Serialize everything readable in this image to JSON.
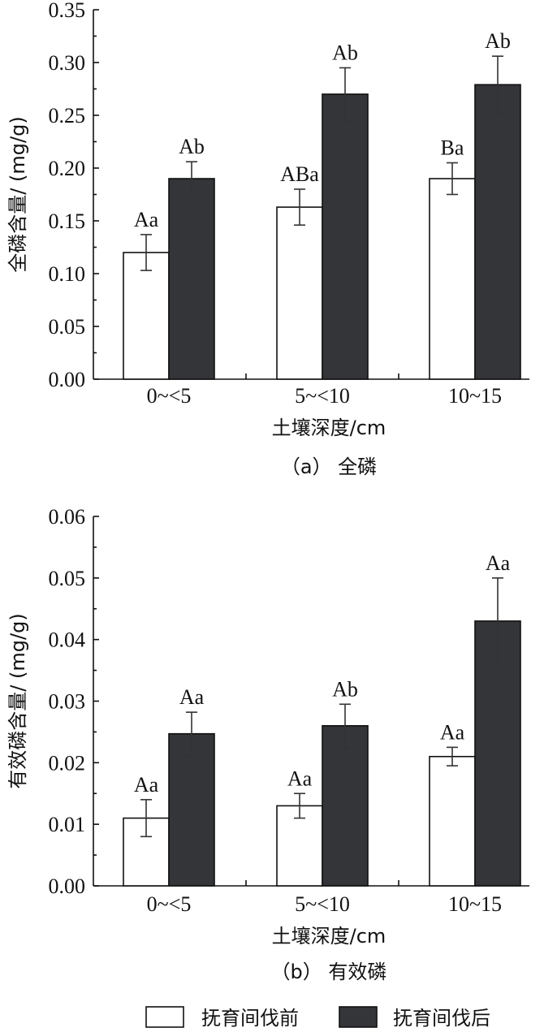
{
  "chart_data": [
    {
      "type": "bar",
      "panel": "a",
      "caption": "（a） 全磷",
      "categories": [
        "0~<5",
        "5~<10",
        "10~15"
      ],
      "series": [
        {
          "name": "抚育间伐前",
          "values": [
            0.12,
            0.163,
            0.19
          ],
          "errors": [
            0.017,
            0.017,
            0.015
          ],
          "labels": [
            "Aa",
            "ABa",
            "Ba"
          ]
        },
        {
          "name": "抚育间伐后",
          "values": [
            0.19,
            0.27,
            0.279
          ],
          "errors": [
            0.016,
            0.025,
            0.027
          ],
          "labels": [
            "Ab",
            "Ab",
            "Ab"
          ]
        }
      ],
      "xlabel": "土壤深度/cm",
      "ylabel": "全磷含量/ (mg/g)",
      "ylim": [
        0,
        0.35
      ],
      "yticks": [
        "0.00",
        "0.05",
        "0.10",
        "0.15",
        "0.20",
        "0.25",
        "0.30",
        "0.35"
      ],
      "grid": false
    },
    {
      "type": "bar",
      "panel": "b",
      "caption": "（b） 有效磷",
      "categories": [
        "0~<5",
        "5~<10",
        "10~15"
      ],
      "series": [
        {
          "name": "抚育间伐前",
          "values": [
            0.011,
            0.013,
            0.021
          ],
          "errors": [
            0.003,
            0.002,
            0.0015
          ],
          "labels": [
            "Aa",
            "Aa",
            "Aa"
          ]
        },
        {
          "name": "抚育间伐后",
          "values": [
            0.0247,
            0.026,
            0.043
          ],
          "errors": [
            0.0035,
            0.0035,
            0.007
          ],
          "labels": [
            "Aa",
            "Ab",
            "Aa"
          ]
        }
      ],
      "xlabel": "土壤深度/cm",
      "ylabel": "有效磷含量/ (mg/g)",
      "ylim": [
        0,
        0.06
      ],
      "yticks": [
        "0.00",
        "0.01",
        "0.02",
        "0.03",
        "0.04",
        "0.05",
        "0.06"
      ],
      "grid": false
    }
  ],
  "legend": {
    "placement": "bottom",
    "items": [
      {
        "label": "抚育间伐前",
        "color": "#ffffff"
      },
      {
        "label": "抚育间伐后",
        "color": "#333538"
      }
    ]
  },
  "colors": {
    "before": "#ffffff",
    "after": "#333538",
    "axis": "#111111"
  }
}
